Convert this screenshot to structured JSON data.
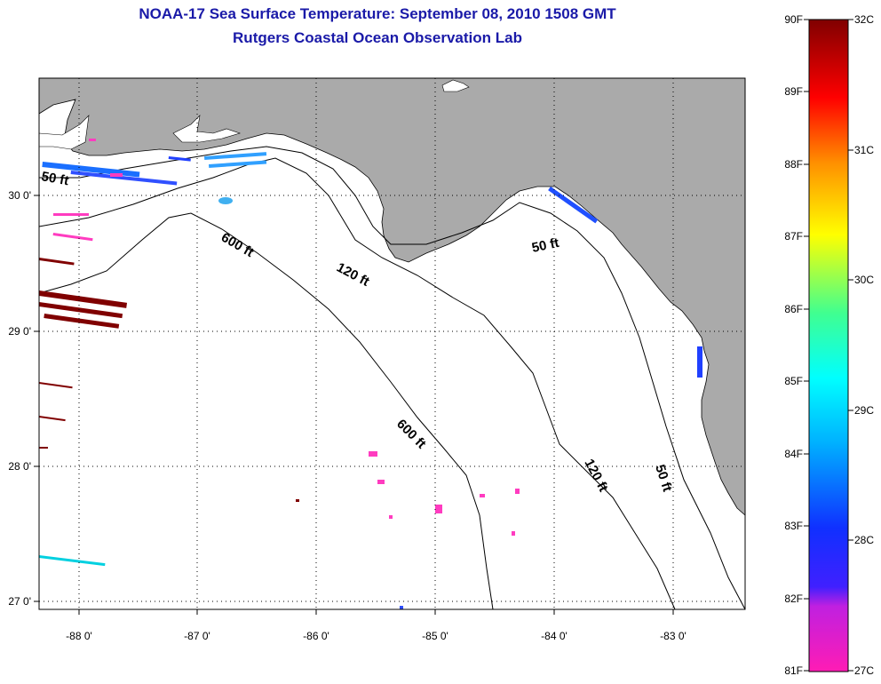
{
  "header": {
    "title": "NOAA-17 Sea Surface Temperature:  September 08, 2010 1508 GMT",
    "subtitle": "Rutgers Coastal Ocean Observation Lab"
  },
  "map": {
    "lon_ticks": [
      "-88 0'",
      "-87 0'",
      "-86 0'",
      "-85 0'",
      "-84 0'",
      "-83 0'"
    ],
    "lat_ticks": [
      "30 0'",
      "29 0'",
      "28 0'",
      "27 0'"
    ],
    "contours": {
      "c50_west": "50 ft",
      "c600_north": "600 ft",
      "c120_north": "120 ft",
      "c50_east": "50 ft",
      "c600_south": "600 ft",
      "c120_south": "120 ft",
      "c50_south": "50 ft"
    },
    "colors": {
      "land": "#aaaaaa",
      "ocean": "#ffffff",
      "cloud_or_missing": "#ffffff",
      "warm_streak": "#800000"
    }
  },
  "colorbar": {
    "f_labels": [
      "90F",
      "89F",
      "88F",
      "87F",
      "86F",
      "85F",
      "84F",
      "83F",
      "82F",
      "81F"
    ],
    "c_labels": [
      "32C",
      "31C",
      "30C",
      "29C",
      "28C",
      "27C"
    ],
    "range_f": [
      81,
      90
    ],
    "range_c": [
      27,
      32
    ],
    "colors": [
      "#ff1cb4",
      "#b020e0",
      "#2020ff",
      "#00a0ff",
      "#00ffff",
      "#60ff80",
      "#ffff00",
      "#ff9000",
      "#ff0000",
      "#800000"
    ]
  }
}
